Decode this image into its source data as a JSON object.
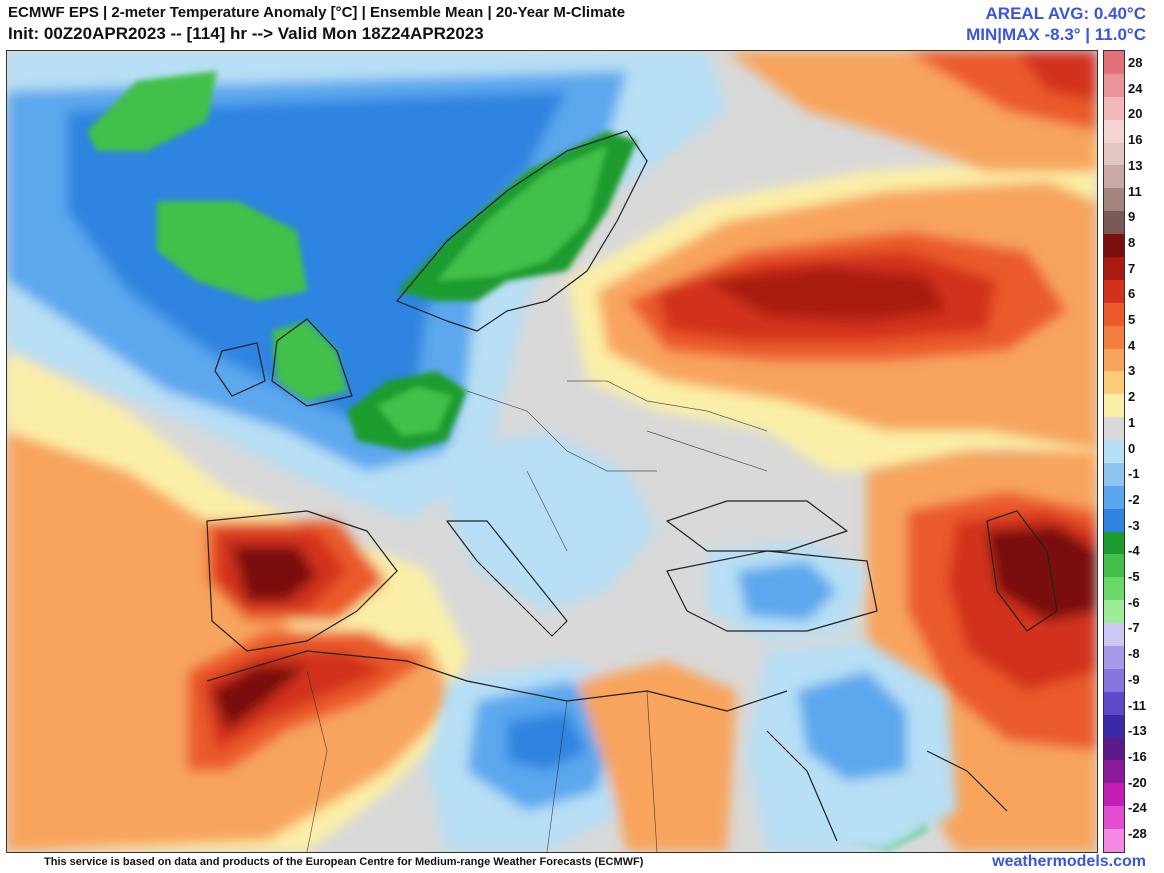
{
  "header": {
    "title_line1": "ECMWF EPS | 2-meter Temperature Anomaly [°C] | Ensemble Mean | 20-Year M-Climate",
    "title_line2": "Init: 00Z20APR2023 -- [114] hr --> Valid Mon 18Z24APR2023",
    "areal_avg": "AREAL AVG: 0.40°C",
    "min_max": "MIN|MAX -8.3° | 11.0°C"
  },
  "footer": {
    "disclaimer": "This service is based on data and products of the European Centre for Medium-range Weather Forecasts (ECMWF)",
    "brand": "weathermodels.com"
  },
  "colorbar": {
    "labels": [
      "28",
      "24",
      "20",
      "16",
      "13",
      "11",
      "9",
      "8",
      "7",
      "6",
      "5",
      "4",
      "3",
      "2",
      "1",
      "0",
      "-1",
      "-2",
      "-3",
      "-4",
      "-5",
      "-6",
      "-7",
      "-8",
      "-9",
      "-11",
      "-13",
      "-16",
      "-20",
      "-24",
      "-28"
    ],
    "colors": [
      "#e2727a",
      "#ea949a",
      "#f2b8bb",
      "#f5d3d2",
      "#e2c6c2",
      "#c9a9a4",
      "#a6847e",
      "#7a5a55",
      "#7a0f0f",
      "#a91a10",
      "#d2311c",
      "#eb5a2b",
      "#f37f3f",
      "#f8a45d",
      "#fccb7a",
      "#fbefa7",
      "#d9d9d9",
      "#b7dff5",
      "#8ec6f2",
      "#5ba7ee",
      "#2f84e0",
      "#1c9b2e",
      "#42c04a",
      "#6ad96a",
      "#9cec98",
      "#cdc8f5",
      "#a79ae9",
      "#8675dd",
      "#5d4ac9",
      "#3a2aa8",
      "#5a1a8c",
      "#8a1a9a",
      "#c21db4",
      "#e34ed1",
      "#f48ae3"
    ]
  },
  "map": {
    "region": "Europe, North Africa and the Middle East",
    "palette": {
      "ocean_neutral": "#d9d9d9",
      "cold_light": "#b7dff5",
      "cold_mid": "#5ba7ee",
      "cold_deep": "#2f84e0",
      "green_light": "#6ad96a",
      "green_deep": "#1c9b2e",
      "warm_light": "#fbefa7",
      "warm_mid": "#f8a45d",
      "warm_orange": "#eb5a2b",
      "warm_red": "#d2311c",
      "warm_deep": "#7a0f0f",
      "warm_brown": "#7a5a55"
    }
  }
}
